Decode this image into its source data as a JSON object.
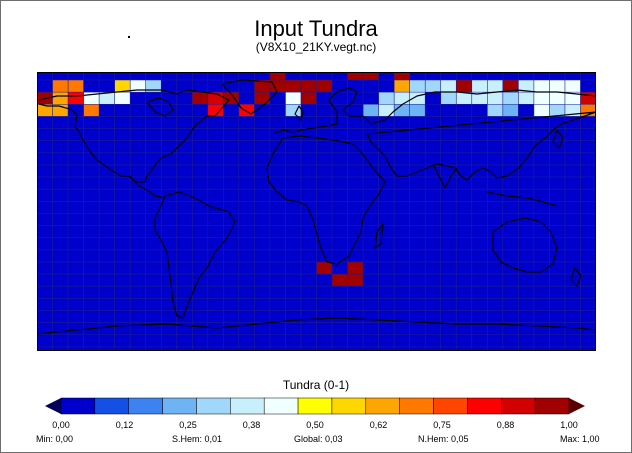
{
  "title": "Input Tundra",
  "subtitle": "(V8X10_21KY.vegt.nc)",
  "colorbar": {
    "label": "Tundra (0-1)",
    "colors": [
      "#0000cd",
      "#1450e6",
      "#3c82f0",
      "#6eb4f5",
      "#a0d7fa",
      "#c8f0fc",
      "#f0ffff",
      "#ffff00",
      "#ffd700",
      "#ffa500",
      "#ff7800",
      "#ff4500",
      "#ff0000",
      "#d20000",
      "#a00000"
    ],
    "tick_labels": [
      "0,00",
      "0,12",
      "0,25",
      "0,38",
      "0,50",
      "0,62",
      "0,75",
      "0,88",
      "1,00"
    ],
    "under_color": "#00005a",
    "over_color": "#5a0000"
  },
  "stats": {
    "min": "Min: 0,00",
    "shem": "S.Hem: 0,01",
    "global": "Global: 0,03",
    "nhem": "N.Hem: 0,05",
    "max": "Max: 1,00"
  },
  "map": {
    "grid": {
      "cols": 36,
      "rows": 23
    },
    "background_color": "#0000cd",
    "cells": [
      {
        "col": 0,
        "row": 1,
        "v": 0.95
      },
      {
        "col": 0,
        "row": 2,
        "v": 0.65
      },
      {
        "col": 1,
        "row": 0,
        "v": 0.7
      },
      {
        "col": 1,
        "row": 1,
        "v": 0.6
      },
      {
        "col": 1,
        "row": 2,
        "v": 0.6
      },
      {
        "col": 2,
        "row": 0,
        "v": 0.7
      },
      {
        "col": 2,
        "row": 1,
        "v": 0.8
      },
      {
        "col": 3,
        "row": 1,
        "v": 0.45
      },
      {
        "col": 3,
        "row": 2,
        "v": 0.7
      },
      {
        "col": 4,
        "row": 1,
        "v": 0.35
      },
      {
        "col": 5,
        "row": 0,
        "v": 0.55
      },
      {
        "col": 5,
        "row": 1,
        "v": 0.4
      },
      {
        "col": 6,
        "row": 0,
        "v": 0.4
      },
      {
        "col": 7,
        "row": 0,
        "v": 0.3
      },
      {
        "col": 10,
        "row": 1,
        "v": 0.95
      },
      {
        "col": 11,
        "row": 1,
        "v": 0.9
      },
      {
        "col": 11,
        "row": 2,
        "v": 0.85
      },
      {
        "col": 12,
        "row": 1,
        "v": 0.95
      },
      {
        "col": 13,
        "row": 2,
        "v": 0.85
      },
      {
        "col": 14,
        "row": 0,
        "v": 0.95
      },
      {
        "col": 14,
        "row": 1,
        "v": 0.95
      },
      {
        "col": 15,
        "row": -1,
        "v": 0.95
      },
      {
        "col": 15,
        "row": 0,
        "v": 0.95
      },
      {
        "col": 16,
        "row": 0,
        "v": 0.95
      },
      {
        "col": 17,
        "row": 0,
        "v": 0.95
      },
      {
        "col": 16,
        "row": 1,
        "v": 0.45
      },
      {
        "col": 16,
        "row": 2,
        "v": 0.3
      },
      {
        "col": 17,
        "row": 1,
        "v": 0.95
      },
      {
        "col": 18,
        "row": 0,
        "v": 0.95
      },
      {
        "col": 20,
        "row": -1,
        "v": 0.95
      },
      {
        "col": 21,
        "row": -1,
        "v": 0.95
      },
      {
        "col": 23,
        "row": -1,
        "v": 0.95
      },
      {
        "col": 23,
        "row": 0,
        "v": 0.6
      },
      {
        "col": 22,
        "row": 1,
        "v": 0.3
      },
      {
        "col": 23,
        "row": 1,
        "v": 0.35
      },
      {
        "col": 24,
        "row": 1,
        "v": 0.35
      },
      {
        "col": 24,
        "row": 0,
        "v": 0.3
      },
      {
        "col": 25,
        "row": 0,
        "v": 0.3
      },
      {
        "col": 21,
        "row": 2,
        "v": 0.2
      },
      {
        "col": 22,
        "row": 2,
        "v": 0.35
      },
      {
        "col": 23,
        "row": 2,
        "v": 0.25
      },
      {
        "col": 24,
        "row": 2,
        "v": 0.2
      },
      {
        "col": 26,
        "row": 0,
        "v": 0.35
      },
      {
        "col": 26,
        "row": 1,
        "v": 0.3
      },
      {
        "col": 27,
        "row": 0,
        "v": 0.95
      },
      {
        "col": 27,
        "row": 1,
        "v": 0.35
      },
      {
        "col": 28,
        "row": 0,
        "v": 0.35
      },
      {
        "col": 28,
        "row": 1,
        "v": 0.35
      },
      {
        "col": 29,
        "row": 0,
        "v": 0.35
      },
      {
        "col": 29,
        "row": 1,
        "v": 0.35
      },
      {
        "col": 29,
        "row": 2,
        "v": 0.3
      },
      {
        "col": 30,
        "row": 0,
        "v": 0.95
      },
      {
        "col": 30,
        "row": 1,
        "v": 0.3
      },
      {
        "col": 30,
        "row": 2,
        "v": 0.2
      },
      {
        "col": 31,
        "row": 0,
        "v": 0.35
      },
      {
        "col": 31,
        "row": 1,
        "v": 0.35
      },
      {
        "col": 32,
        "row": 0,
        "v": 0.4
      },
      {
        "col": 32,
        "row": 1,
        "v": 0.4
      },
      {
        "col": 32,
        "row": 2,
        "v": 0.4
      },
      {
        "col": 33,
        "row": 0,
        "v": 0.4
      },
      {
        "col": 33,
        "row": 1,
        "v": 0.4
      },
      {
        "col": 33,
        "row": 2,
        "v": 0.3
      },
      {
        "col": 34,
        "row": 0,
        "v": 0.4
      },
      {
        "col": 34,
        "row": 1,
        "v": 0.4
      },
      {
        "col": 34,
        "row": 2,
        "v": 0.35
      },
      {
        "col": 35,
        "row": 1,
        "v": 0.9
      },
      {
        "col": 35,
        "row": 2,
        "v": 0.7
      },
      {
        "col": 18,
        "row": 15,
        "v": 0.95
      },
      {
        "col": 19,
        "row": 16,
        "v": 0.95
      },
      {
        "col": 20,
        "row": 15,
        "v": 0.95
      },
      {
        "col": 20,
        "row": 16,
        "v": 0.95
      }
    ]
  }
}
